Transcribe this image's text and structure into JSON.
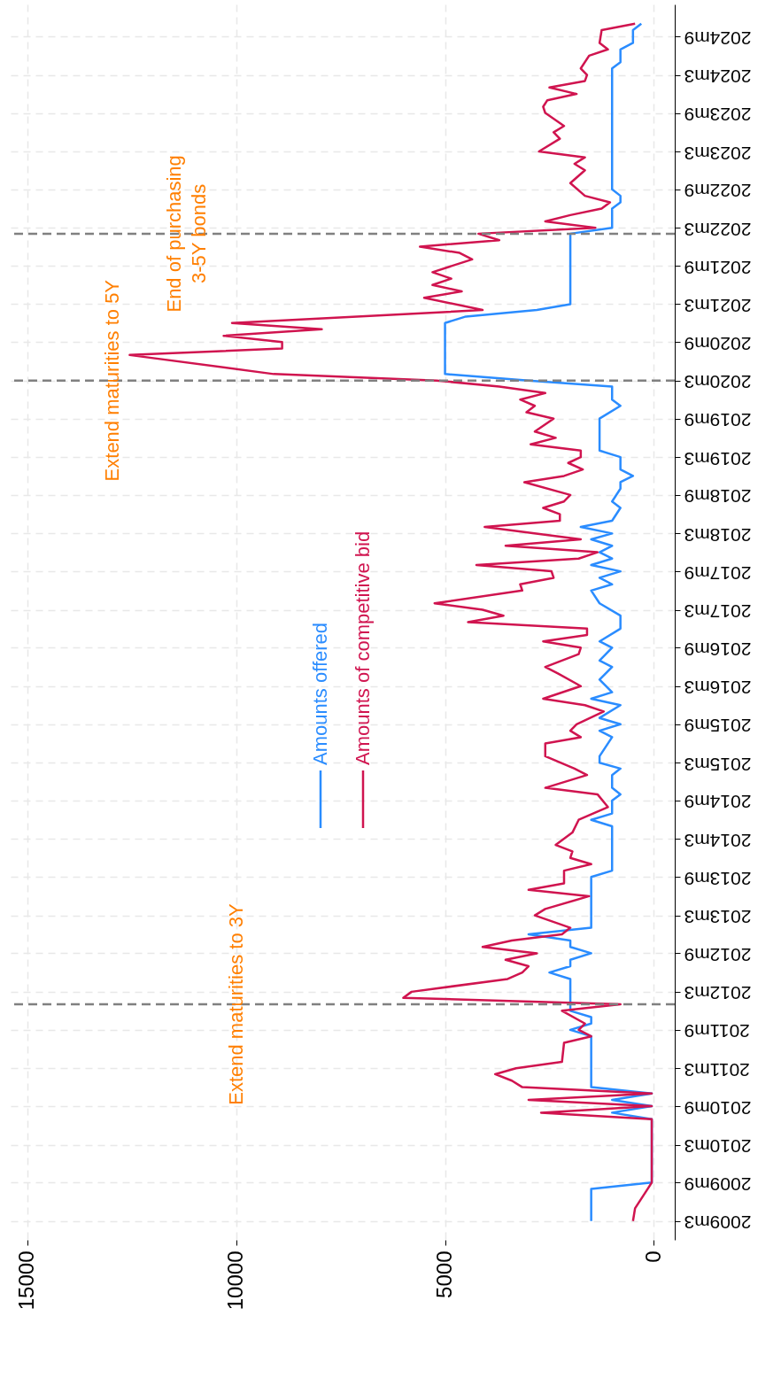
{
  "chart_data": {
    "type": "line",
    "x": [
      "2009-03",
      "2009-05",
      "2009-07",
      "2009-08",
      "2009-09",
      "2010-07",
      "2010-08",
      "2010-09",
      "2010-10",
      "2010-11",
      "2010-12",
      "2011-01",
      "2011-02",
      "2011-03",
      "2011-04",
      "2011-07",
      "2011-08",
      "2011-09",
      "2011-10",
      "2011-12",
      "2012-01",
      "2012-02",
      "2012-03",
      "2012-05",
      "2012-06",
      "2012-07",
      "2012-08",
      "2012-09",
      "2012-10",
      "2012-11",
      "2012-12",
      "2013-01",
      "2013-03",
      "2013-04",
      "2013-06",
      "2013-07",
      "2013-08",
      "2013-10",
      "2013-11",
      "2013-12",
      "2014-01",
      "2014-02",
      "2014-04",
      "2014-06",
      "2014-08",
      "2014-10",
      "2014-11",
      "2015-01",
      "2015-02",
      "2015-04",
      "2015-06",
      "2015-07",
      "2015-08",
      "2015-09",
      "2015-11",
      "2015-12",
      "2016-01",
      "2016-03",
      "2016-05",
      "2016-06",
      "2016-08",
      "2016-09",
      "2016-10",
      "2016-11",
      "2016-12",
      "2017-01",
      "2017-02",
      "2017-03",
      "2017-04",
      "2017-06",
      "2017-07",
      "2017-08",
      "2017-09",
      "2017-10",
      "2017-11",
      "2017-12",
      "2018-01",
      "2018-02",
      "2018-04",
      "2018-05",
      "2018-06",
      "2018-07",
      "2018-08",
      "2018-09",
      "2018-11",
      "2018-12",
      "2019-01",
      "2019-02",
      "2019-03",
      "2019-04",
      "2019-05",
      "2019-06",
      "2019-07",
      "2019-09",
      "2019-10",
      "2019-11",
      "2019-12",
      "2020-01",
      "2020-02",
      "2020-03",
      "2020-04",
      "2020-07",
      "2020-08",
      "2020-09",
      "2020-10",
      "2020-11",
      "2020-12",
      "2021-02",
      "2021-04",
      "2021-05",
      "2021-06",
      "2021-07",
      "2021-08",
      "2021-10",
      "2021-11",
      "2021-12",
      "2022-01",
      "2022-02",
      "2022-03",
      "2022-04",
      "2022-05",
      "2022-06",
      "2022-07",
      "2022-08",
      "2022-10",
      "2022-12",
      "2023-01",
      "2023-02",
      "2023-03",
      "2023-05",
      "2023-06",
      "2023-07",
      "2023-09",
      "2023-10",
      "2023-11",
      "2023-12",
      "2024-01",
      "2024-02",
      "2024-03",
      "2024-04",
      "2024-06",
      "2024-07",
      "2024-08",
      "2024-10",
      "2024-11"
    ],
    "series": [
      {
        "name": "Amounts offered",
        "color": "#2a8cff",
        "x": [
          "2009-03",
          "2009-08",
          "2009-09",
          "2010-07",
          "2010-08",
          "2010-09",
          "2010-10",
          "2010-11",
          "2010-12",
          "2011-08",
          "2011-09",
          "2011-10",
          "2011-11",
          "2011-12",
          "2012-05",
          "2012-06",
          "2012-07",
          "2012-08",
          "2012-09",
          "2012-10",
          "2012-11",
          "2012-12",
          "2013-01",
          "2013-09",
          "2013-10",
          "2014-05",
          "2014-06",
          "2014-07",
          "2014-09",
          "2014-10",
          "2014-11",
          "2015-01",
          "2015-02",
          "2015-03",
          "2015-04",
          "2015-07",
          "2015-08",
          "2015-09",
          "2015-10",
          "2015-12",
          "2016-01",
          "2016-02",
          "2016-04",
          "2016-06",
          "2016-07",
          "2016-09",
          "2016-10",
          "2016-12",
          "2017-02",
          "2017-04",
          "2017-06",
          "2017-07",
          "2017-08",
          "2017-09",
          "2017-10",
          "2017-11",
          "2017-12",
          "2018-01",
          "2018-02",
          "2018-03",
          "2018-04",
          "2018-05",
          "2018-07",
          "2018-08",
          "2018-10",
          "2018-11",
          "2018-12",
          "2019-01",
          "2019-03",
          "2019-04",
          "2019-09",
          "2019-11",
          "2019-12",
          "2020-02",
          "2020-03",
          "2020-04",
          "2020-12",
          "2021-01",
          "2021-02",
          "2021-03",
          "2022-02",
          "2022-03",
          "2022-06",
          "2022-07",
          "2022-08",
          "2022-09",
          "2024-04",
          "2024-05",
          "2024-07",
          "2024-08",
          "2024-10",
          "2024-11"
        ],
        "values": [
          1500,
          1500,
          50,
          50,
          1000,
          50,
          1000,
          50,
          1500,
          1500,
          2000,
          1500,
          1500,
          2000,
          2000,
          2500,
          2000,
          2000,
          1500,
          2000,
          2000,
          3000,
          1500,
          1500,
          1000,
          1000,
          1500,
          1000,
          1000,
          800,
          1000,
          1000,
          800,
          1300,
          1300,
          1000,
          1300,
          800,
          1300,
          800,
          1500,
          1000,
          1300,
          1000,
          1300,
          1000,
          1300,
          800,
          800,
          1300,
          1500,
          1000,
          1300,
          800,
          1500,
          1000,
          1300,
          1000,
          1500,
          1000,
          1750,
          1000,
          800,
          1000,
          800,
          800,
          500,
          800,
          800,
          1300,
          1300,
          800,
          1000,
          1000,
          3000,
          5000,
          5000,
          4500,
          2800,
          2000,
          2000,
          1000,
          1000,
          800,
          800,
          1000,
          1000,
          800,
          800,
          500,
          500,
          300
        ]
      },
      {
        "name": "Amounts of competitive bid",
        "color": "#d0144f",
        "values": [
          500,
          450,
          250,
          150,
          50,
          50,
          2700,
          50,
          3000,
          50,
          3150,
          3400,
          3800,
          3300,
          2200,
          2150,
          1500,
          1800,
          1650,
          2200,
          800,
          6000,
          5800,
          3500,
          3150,
          3000,
          3550,
          2800,
          4100,
          3400,
          2200,
          2000,
          2850,
          2600,
          1550,
          3000,
          2150,
          2150,
          1500,
          2000,
          1950,
          2350,
          1950,
          1800,
          1100,
          1350,
          2600,
          1600,
          1900,
          2600,
          2600,
          1750,
          2000,
          1850,
          1200,
          1650,
          2650,
          1750,
          2300,
          2600,
          1800,
          1750,
          2650,
          1600,
          1600,
          4450,
          3600,
          4100,
          5250,
          3150,
          3200,
          2400,
          2450,
          4250,
          1800,
          1350,
          3550,
          1750,
          4050,
          2250,
          2250,
          2650,
          2150,
          2000,
          3100,
          2150,
          1700,
          2050,
          1750,
          1750,
          2950,
          2350,
          2850,
          2400,
          3050,
          2850,
          3200,
          2600,
          3700,
          5200,
          9100,
          12550,
          8900,
          8900,
          10300,
          7950,
          10100,
          4100,
          5500,
          4600,
          5300,
          4850,
          5300,
          4350,
          4650,
          5600,
          3700,
          4200,
          1400,
          2600,
          2000,
          1250,
          1050,
          1650,
          2000,
          1650,
          1900,
          1650,
          2750,
          2250,
          2400,
          2150,
          2600,
          2650,
          2550,
          1850,
          2500,
          1650,
          1600,
          1750,
          1550,
          1100,
          1300,
          1250,
          450
        ]
      }
    ],
    "orientation": "horizontal",
    "xlim": [
      15400,
      -500
    ],
    "xticks": [
      15000,
      10000,
      5000,
      0
    ],
    "ylim": [
      "2008-12",
      "2025-02"
    ],
    "yticks": [
      {
        "value": "2009-03",
        "label": "2009m3"
      },
      {
        "value": "2009-09",
        "label": "2009m9"
      },
      {
        "value": "2010-03",
        "label": "2010m3"
      },
      {
        "value": "2010-09",
        "label": "2010m9"
      },
      {
        "value": "2011-03",
        "label": "2011m3"
      },
      {
        "value": "2011-09",
        "label": "2011m9"
      },
      {
        "value": "2012-03",
        "label": "2012m3"
      },
      {
        "value": "2012-09",
        "label": "2012m9"
      },
      {
        "value": "2013-03",
        "label": "2013m3"
      },
      {
        "value": "2013-09",
        "label": "2013m9"
      },
      {
        "value": "2014-03",
        "label": "2014m3"
      },
      {
        "value": "2014-09",
        "label": "2014m9"
      },
      {
        "value": "2015-03",
        "label": "2015m3"
      },
      {
        "value": "2015-09",
        "label": "2015m9"
      },
      {
        "value": "2016-03",
        "label": "2016m3"
      },
      {
        "value": "2016-09",
        "label": "2016m9"
      },
      {
        "value": "2017-03",
        "label": "2017m3"
      },
      {
        "value": "2017-09",
        "label": "2017m9"
      },
      {
        "value": "2018-03",
        "label": "2018m3"
      },
      {
        "value": "2018-09",
        "label": "2018m9"
      },
      {
        "value": "2019-03",
        "label": "2019m3"
      },
      {
        "value": "2019-09",
        "label": "2019m9"
      },
      {
        "value": "2020-03",
        "label": "2020m3"
      },
      {
        "value": "2020-09",
        "label": "2020m9"
      },
      {
        "value": "2021-03",
        "label": "2021m3"
      },
      {
        "value": "2021-09",
        "label": "2021m9"
      },
      {
        "value": "2022-03",
        "label": "2022m3"
      },
      {
        "value": "2022-09",
        "label": "2022m9"
      },
      {
        "value": "2023-03",
        "label": "2023m3"
      },
      {
        "value": "2023-09",
        "label": "2023m9"
      },
      {
        "value": "2024-03",
        "label": "2024m3"
      },
      {
        "value": "2024-09",
        "label": "2024m9"
      }
    ],
    "ref_lines": [
      {
        "axis": "y",
        "value": "2012-01",
        "label": "Extend maturities to 3Y",
        "color": "#808080",
        "line_style": "dashed"
      },
      {
        "axis": "y",
        "value": "2020-03",
        "label": "Extend maturities to 5Y",
        "color": "#808080",
        "line_style": "dashed"
      },
      {
        "axis": "y",
        "value": "2022-02",
        "label": "End of purchasing\n3-5Y bonds",
        "color": "#808080",
        "line_style": "dashed"
      }
    ],
    "grid": true,
    "legend": "left",
    "line_style": "solid",
    "marker": "none"
  }
}
